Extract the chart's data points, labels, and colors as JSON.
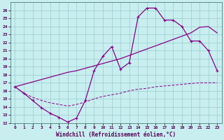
{
  "xlabel": "Windchill (Refroidissement éolien,°C)",
  "bg_color": "#c8eef0",
  "line_color": "#880088",
  "grid_color": "#99cccc",
  "xlim": [
    -0.5,
    23.5
  ],
  "ylim": [
    12,
    27
  ],
  "xticks": [
    0,
    1,
    2,
    3,
    4,
    5,
    6,
    7,
    8,
    9,
    10,
    11,
    12,
    13,
    14,
    15,
    16,
    17,
    18,
    19,
    20,
    21,
    22,
    23
  ],
  "yticks": [
    12,
    13,
    14,
    15,
    16,
    17,
    18,
    19,
    20,
    21,
    22,
    23,
    24,
    25,
    26
  ],
  "s1_x": [
    0,
    1,
    2,
    3,
    4,
    5,
    6,
    7,
    8,
    9,
    10,
    11,
    12,
    13,
    14,
    15,
    16,
    17,
    18,
    19,
    20,
    21,
    22,
    23
  ],
  "s1_y": [
    16.5,
    15.7,
    14.8,
    13.9,
    13.2,
    12.7,
    12.1,
    12.6,
    14.8,
    18.5,
    20.3,
    21.5,
    18.7,
    19.5,
    25.2,
    26.3,
    26.3,
    24.8,
    24.8,
    24.0,
    22.2,
    22.2,
    21.0,
    18.5
  ],
  "s2_x": [
    0,
    1,
    2,
    3,
    4,
    5,
    6,
    7,
    8,
    9,
    10,
    11,
    12,
    13,
    14,
    15,
    16,
    17,
    18,
    19,
    20,
    21,
    22,
    23
  ],
  "s2_y": [
    16.5,
    15.7,
    15.2,
    14.8,
    14.5,
    14.3,
    14.1,
    14.3,
    14.6,
    15.0,
    15.3,
    15.5,
    15.7,
    16.0,
    16.2,
    16.3,
    16.5,
    16.6,
    16.7,
    16.8,
    16.9,
    17.0,
    17.0,
    17.0
  ],
  "s3_x": [
    0,
    1,
    2,
    3,
    4,
    5,
    6,
    7,
    8,
    9,
    10,
    11,
    12,
    13,
    14,
    15,
    16,
    17,
    18,
    19,
    20,
    21,
    22,
    23
  ],
  "s3_y": [
    16.5,
    16.8,
    17.1,
    17.4,
    17.7,
    18.0,
    18.3,
    18.5,
    18.8,
    19.1,
    19.4,
    19.7,
    20.0,
    20.4,
    20.8,
    21.2,
    21.6,
    22.0,
    22.4,
    22.8,
    23.2,
    23.9,
    24.0,
    23.2
  ]
}
